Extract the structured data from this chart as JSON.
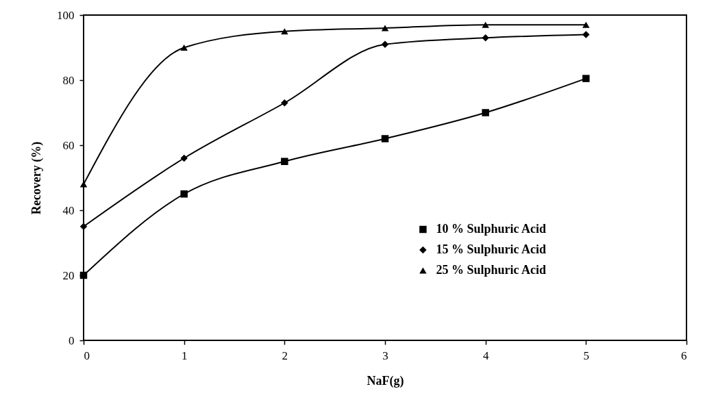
{
  "chart_data": {
    "type": "line",
    "xlabel": "NaF(g)",
    "ylabel": "Recovery (%)",
    "x": [
      0,
      1,
      2,
      3,
      4,
      5
    ],
    "xlim": [
      0,
      6
    ],
    "xticks": [
      0,
      1,
      2,
      3,
      4,
      5,
      6
    ],
    "ylim": [
      0,
      100
    ],
    "yticks": [
      0,
      20,
      40,
      60,
      80,
      100
    ],
    "grid": false,
    "legend": "bottom right",
    "line_style": "solid",
    "series": [
      {
        "name": "10 % Sulphuric Acid",
        "color": "#000000",
        "marker": "square",
        "values": [
          20,
          45,
          55,
          62,
          70,
          80.5
        ]
      },
      {
        "name": "15 % Sulphuric Acid",
        "color": "#000000",
        "marker": "diamond",
        "values": [
          35,
          56,
          73,
          91,
          93,
          94
        ]
      },
      {
        "name": "25 % Sulphuric Acid",
        "color": "#000000",
        "marker": "triangle",
        "values": [
          48,
          90,
          95,
          96,
          97,
          97
        ]
      }
    ]
  }
}
